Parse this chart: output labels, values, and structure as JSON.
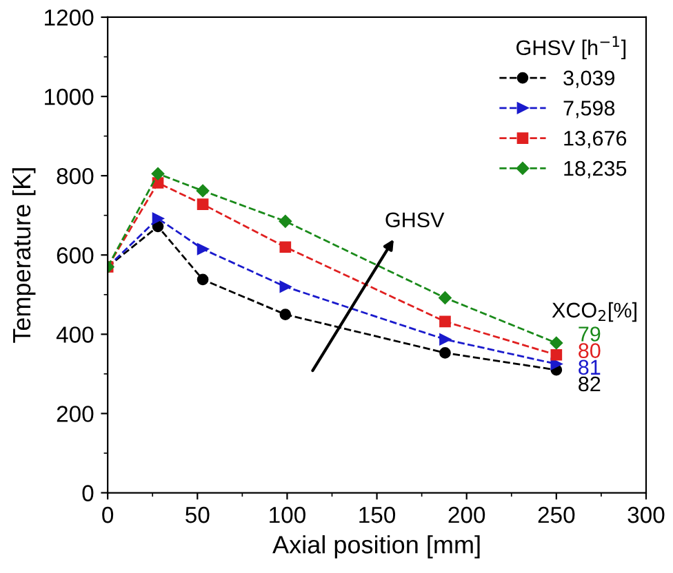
{
  "chart_data": {
    "type": "line",
    "xlabel": "Axial position [mm]",
    "ylabel": "Temperature [K]",
    "legend_title": "GHSV [h$^{−1}$]",
    "x": [
      0,
      28,
      53,
      99,
      188,
      250
    ],
    "series": [
      {
        "name": "3,039",
        "color": "#000000",
        "marker": "circle",
        "values": [
          570,
          672,
          538,
          450,
          353,
          310
        ]
      },
      {
        "name": "7,598",
        "color": "#1a1acc",
        "marker": "triangle",
        "values": [
          570,
          692,
          615,
          520,
          387,
          325
        ]
      },
      {
        "name": "13,676",
        "color": "#e02020",
        "marker": "square",
        "values": [
          570,
          782,
          728,
          620,
          432,
          348
        ]
      },
      {
        "name": "18,235",
        "color": "#1a8a1a",
        "marker": "diamond",
        "values": [
          570,
          805,
          762,
          685,
          492,
          378
        ]
      }
    ],
    "annotations": [
      "GHSV",
      "XCO$_{2}$[%]",
      "79",
      "80",
      "81",
      "82"
    ],
    "xlim": [
      0,
      300
    ],
    "xticks": [
      0,
      50,
      100,
      150,
      200,
      250,
      300
    ],
    "ylim": [
      0,
      1200
    ],
    "yticks": [
      0,
      200,
      400,
      600,
      800,
      1000,
      1200
    ],
    "grid": false,
    "legend": "top right",
    "line_style": "dashed"
  }
}
